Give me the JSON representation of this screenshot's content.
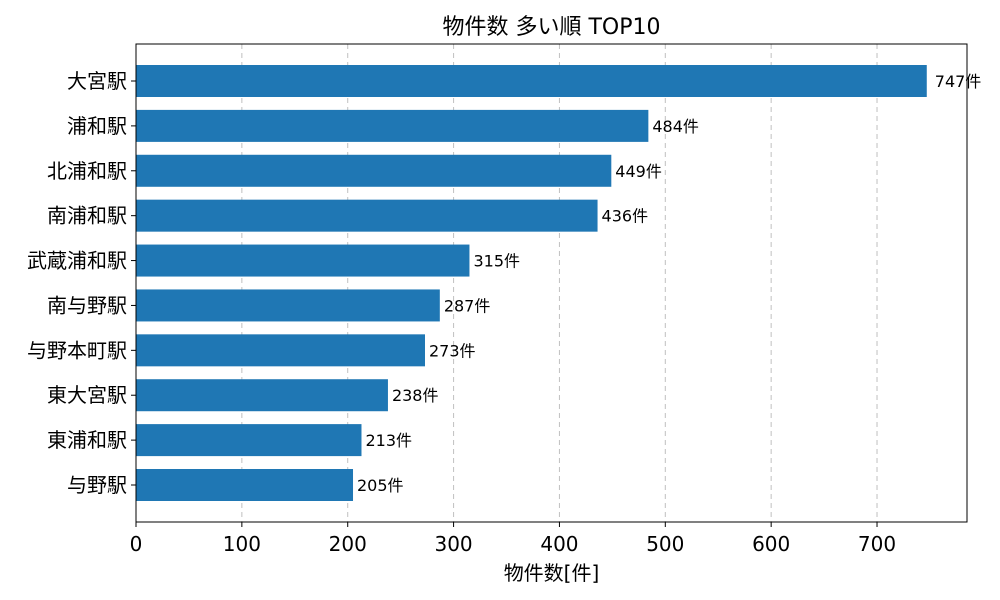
{
  "chart_data": {
    "type": "bar",
    "orientation": "horizontal",
    "title": "物件数 多い順 TOP10",
    "xlabel": "物件数[件]",
    "ylabel": "",
    "xlim": [
      0,
      785
    ],
    "xticks": [
      0,
      100,
      200,
      300,
      400,
      500,
      600,
      700
    ],
    "grid": "x-dashed",
    "categories": [
      "大宮駅",
      "浦和駅",
      "北浦和駅",
      "南浦和駅",
      "武蔵浦和駅",
      "南与野駅",
      "与野本町駅",
      "東大宮駅",
      "東浦和駅",
      "与野駅"
    ],
    "values": [
      747,
      484,
      449,
      436,
      315,
      287,
      273,
      238,
      213,
      205
    ],
    "value_suffix": "件",
    "bar_color": "#1f77b4"
  }
}
